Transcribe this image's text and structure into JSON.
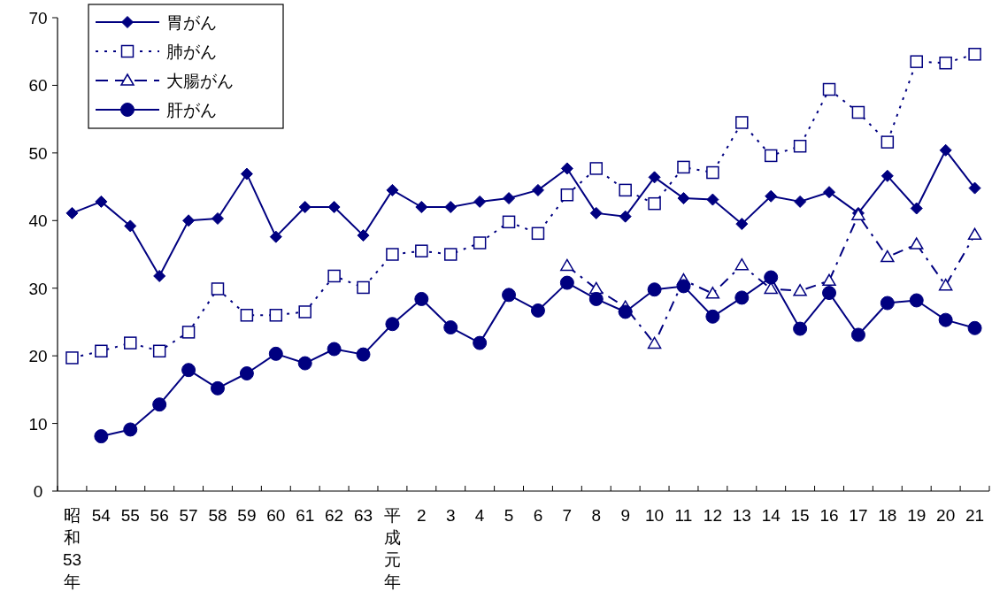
{
  "chart_data": {
    "type": "line",
    "categories": [
      "昭和53年",
      "54",
      "55",
      "56",
      "57",
      "58",
      "59",
      "60",
      "61",
      "62",
      "63",
      "平成元年",
      "2",
      "3",
      "4",
      "5",
      "6",
      "7",
      "8",
      "9",
      "10",
      "11",
      "12",
      "13",
      "14",
      "15",
      "16",
      "17",
      "18",
      "19",
      "20",
      "21"
    ],
    "series": [
      {
        "name": "胃がん",
        "color": "#000080",
        "marker": "diamond",
        "line_style": "solid",
        "values": [
          41.1,
          42.8,
          39.2,
          31.8,
          40,
          40.3,
          46.9,
          37.6,
          42,
          42,
          37.8,
          44.5,
          42,
          42,
          42.8,
          43.3,
          44.5,
          47.7,
          41.1,
          40.6,
          46.4,
          43.3,
          43.1,
          39.5,
          43.6,
          42.8,
          44.2,
          41.1,
          46.6,
          41.8,
          50.4,
          44.8
        ]
      },
      {
        "name": "肺がん",
        "color": "#000080",
        "marker": "square",
        "line_style": "dotted",
        "values": [
          19.7,
          20.7,
          21.9,
          20.7,
          23.5,
          29.9,
          26,
          26,
          26.5,
          31.8,
          30.1,
          35,
          35.5,
          35,
          36.7,
          39.8,
          38.1,
          43.8,
          47.7,
          44.5,
          42.5,
          47.9,
          47.1,
          54.5,
          49.6,
          51,
          59.4,
          56,
          51.6,
          63.5,
          63.3,
          64.6
        ]
      },
      {
        "name": "大腸がん",
        "color": "#000080",
        "marker": "triangle",
        "line_style": "dashed",
        "values": [
          null,
          null,
          null,
          null,
          null,
          null,
          null,
          null,
          null,
          null,
          null,
          null,
          null,
          null,
          null,
          null,
          null,
          33.3,
          29.9,
          27.2,
          21.8,
          31.2,
          29.2,
          33.4,
          29.9,
          29.6,
          31.1,
          40.8,
          34.6,
          36.5,
          30.4,
          37.9
        ]
      },
      {
        "name": "肝がん",
        "color": "#000080",
        "marker": "circle",
        "line_style": "solid",
        "values": [
          null,
          8.1,
          9.1,
          12.8,
          17.9,
          15.2,
          17.4,
          20.3,
          18.9,
          21,
          20.2,
          24.7,
          28.4,
          24.2,
          21.9,
          29,
          26.7,
          30.8,
          28.4,
          26.5,
          29.8,
          30.3,
          25.8,
          28.6,
          31.6,
          24,
          29.3,
          23.1,
          27.8,
          28.2,
          25.3,
          24.1
        ]
      }
    ],
    "ylim": [
      0,
      70
    ],
    "yticks": [
      0,
      10,
      20,
      30,
      40,
      50,
      60,
      70
    ],
    "grid": false,
    "legend": "top left"
  }
}
